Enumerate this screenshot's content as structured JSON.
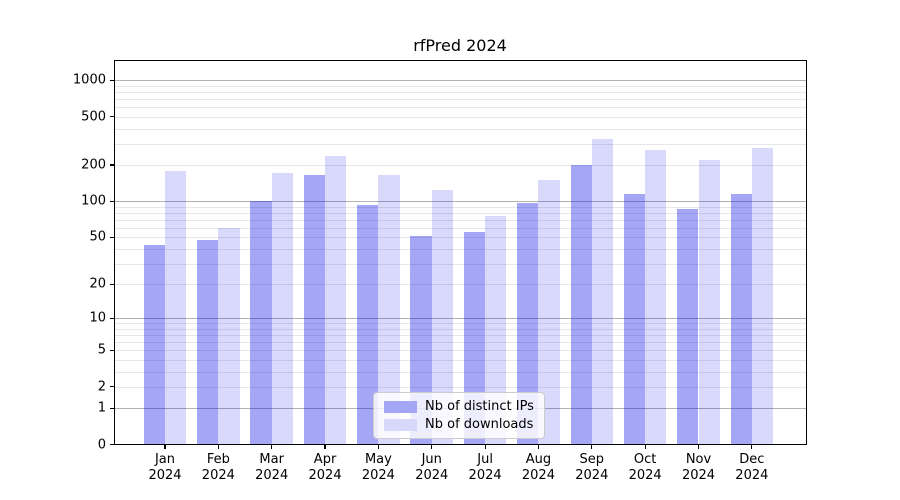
{
  "title": "rfPred 2024",
  "legend": {
    "items": [
      {
        "label": "Nb of distinct IPs",
        "color": "#a5a5f6"
      },
      {
        "label": "Nb of downloads",
        "color": "#d8d8fb"
      }
    ]
  },
  "chart_data": {
    "type": "bar",
    "title": "rfPred 2024",
    "categories": [
      "Jan 2024",
      "Feb 2024",
      "Mar 2024",
      "Apr 2024",
      "May 2024",
      "Jun 2024",
      "Jul 2024",
      "Aug 2024",
      "Sep 2024",
      "Oct 2024",
      "Nov 2024",
      "Dec 2024"
    ],
    "series": [
      {
        "name": "Nb of distinct IPs",
        "color": "rgba(0,0,230,0.35)",
        "values": [
          43,
          48,
          100,
          165,
          94,
          51,
          55,
          97,
          200,
          116,
          87,
          114
        ]
      },
      {
        "name": "Nb of downloads",
        "color": "rgba(0,0,230,0.15)",
        "values": [
          177,
          60,
          172,
          238,
          164,
          124,
          75,
          150,
          330,
          268,
          221,
          277
        ]
      }
    ],
    "yscale": "log1p",
    "yticks": [
      0,
      1,
      2,
      5,
      10,
      20,
      50,
      100,
      200,
      500,
      1000
    ],
    "major_grid_values": [
      1,
      10,
      100,
      1000
    ],
    "minor_grid_values": [
      2,
      3,
      4,
      5,
      6,
      7,
      8,
      9,
      20,
      30,
      40,
      50,
      60,
      70,
      80,
      90,
      200,
      300,
      400,
      500,
      600,
      700,
      800,
      900
    ],
    "ylim": [
      0,
      1470
    ],
    "grid": "horizontal",
    "legend_position": "lower center",
    "colors": {
      "major_grid": "#b2b2b2",
      "minor_grid": "#e7e7e7",
      "axis": "#000000",
      "background": "#ffffff",
      "text": "#000000"
    }
  }
}
